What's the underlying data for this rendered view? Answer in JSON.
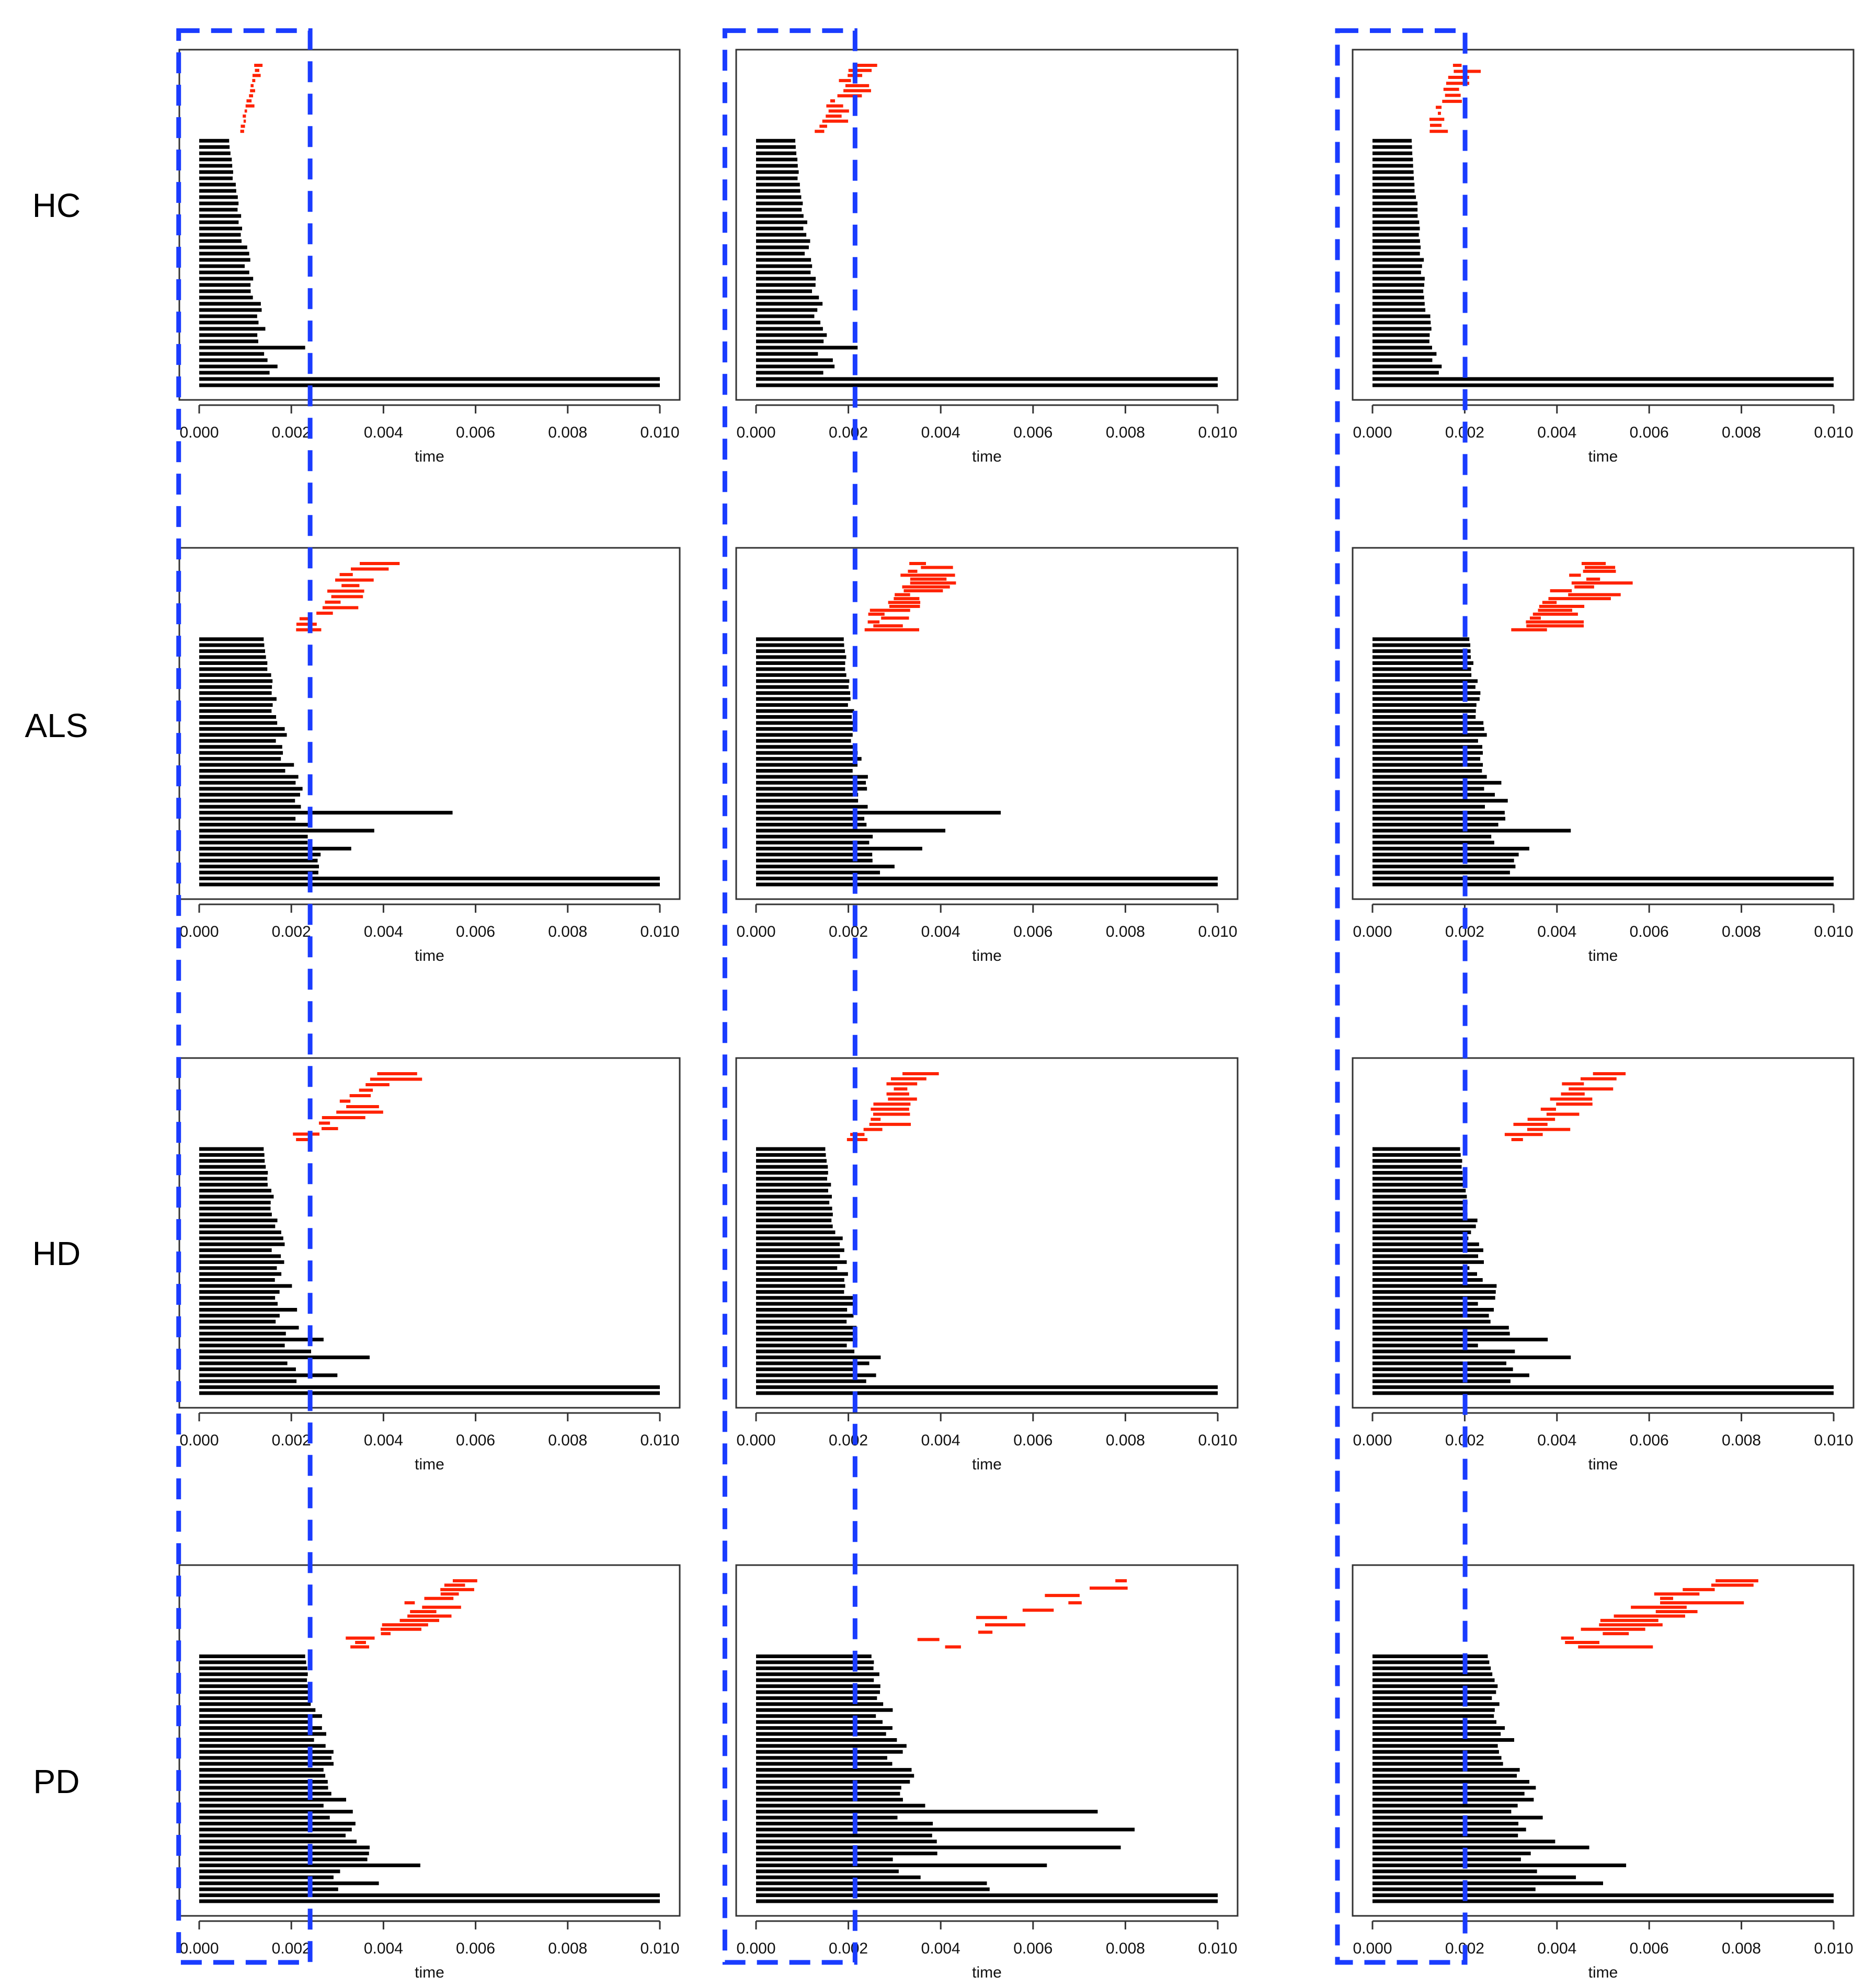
{
  "chart_data": {
    "type": "barcode",
    "description_free": true,
    "xlabel": "time",
    "xlim": [
      0,
      0.01
    ],
    "x_ticks": [
      "0.000",
      "0.002",
      "0.004",
      "0.006",
      "0.008",
      "0.010"
    ],
    "row_labels": [
      "HC",
      "ALS",
      "HD",
      "PD"
    ],
    "highlight_threshold": 0.0022,
    "colors": {
      "h0_bars": "#000000",
      "h1_bars": "#ff2200",
      "highlight_box": "#1a3cff"
    },
    "panels": [
      {
        "row": "HC",
        "col": 1,
        "h0_n": 40,
        "h0_min": 0.00065,
        "h0_max": 0.0014,
        "h0_spread": 0.0004,
        "h0_outliers": [
          0.0017,
          0.0023
        ],
        "h1_n": 14,
        "h1_start_range": [
          0.00085,
          0.00125
        ],
        "h1_len_range": [
          5e-05,
          0.0002
        ]
      },
      {
        "row": "HC",
        "col": 2,
        "h0_n": 40,
        "h0_min": 0.00085,
        "h0_max": 0.0014,
        "h0_spread": 0.0004,
        "h0_outliers": [
          0.0017,
          0.0022
        ],
        "h1_n": 14,
        "h1_start_range": [
          0.0011,
          0.0023
        ],
        "h1_len_range": [
          0.0001,
          0.0006
        ]
      },
      {
        "row": "HC",
        "col": 3,
        "h0_n": 40,
        "h0_min": 0.00085,
        "h0_max": 0.0013,
        "h0_spread": 0.0002,
        "h0_outliers": [
          0.0015
        ],
        "h1_n": 12,
        "h1_start_range": [
          0.0011,
          0.0019
        ],
        "h1_len_range": [
          5e-05,
          0.0006
        ]
      },
      {
        "row": "ALS",
        "col": 1,
        "h0_n": 42,
        "h0_min": 0.0014,
        "h0_max": 0.0022,
        "h0_spread": 0.0007,
        "h0_outliers": [
          0.0026,
          0.0033,
          0.0038,
          0.0055
        ],
        "h1_n": 13,
        "h1_start_range": [
          0.0019,
          0.0036
        ],
        "h1_len_range": [
          0.0002,
          0.0009
        ]
      },
      {
        "row": "ALS",
        "col": 2,
        "h0_n": 42,
        "h0_min": 0.0019,
        "h0_max": 0.0023,
        "h0_spread": 0.0006,
        "h0_outliers": [
          0.003,
          0.0036,
          0.0041,
          0.0053
        ],
        "h1_n": 18,
        "h1_start_range": [
          0.0021,
          0.0037
        ],
        "h1_len_range": [
          0.0002,
          0.0012
        ]
      },
      {
        "row": "ALS",
        "col": 3,
        "h0_n": 42,
        "h0_min": 0.0021,
        "h0_max": 0.0026,
        "h0_spread": 0.0009,
        "h0_outliers": [
          0.0031,
          0.0034,
          0.0043
        ],
        "h1_n": 18,
        "h1_start_range": [
          0.0028,
          0.0051
        ],
        "h1_len_range": [
          0.0002,
          0.0014
        ]
      },
      {
        "row": "HD",
        "col": 1,
        "h0_n": 42,
        "h0_min": 0.0014,
        "h0_max": 0.0018,
        "h0_spread": 0.0009,
        "h0_outliers": [
          0.003,
          0.0037,
          0.0027
        ],
        "h1_n": 13,
        "h1_start_range": [
          0.0019,
          0.004
        ],
        "h1_len_range": [
          0.0002,
          0.0012
        ]
      },
      {
        "row": "HD",
        "col": 2,
        "h0_n": 42,
        "h0_min": 0.0015,
        "h0_max": 0.0021,
        "h0_spread": 0.0006,
        "h0_outliers": [
          0.0026,
          0.0027
        ],
        "h1_n": 14,
        "h1_start_range": [
          0.0019,
          0.0033
        ],
        "h1_len_range": [
          0.0002,
          0.0009
        ]
      },
      {
        "row": "HD",
        "col": 3,
        "h0_n": 42,
        "h0_min": 0.0019,
        "h0_max": 0.0024,
        "h0_spread": 0.001,
        "h0_outliers": [
          0.0034,
          0.0043,
          0.0038
        ],
        "h1_n": 14,
        "h1_start_range": [
          0.0026,
          0.0048
        ],
        "h1_len_range": [
          0.0002,
          0.001
        ]
      },
      {
        "row": "PD",
        "col": 1,
        "h0_n": 42,
        "h0_min": 0.0023,
        "h0_max": 0.0029,
        "h0_spread": 0.0012,
        "h0_outliers": [
          0.0039,
          0.0048,
          0.0037
        ],
        "h1_n": 16,
        "h1_start_range": [
          0.0029,
          0.0057
        ],
        "h1_len_range": [
          0.0002,
          0.0011
        ]
      },
      {
        "row": "PD",
        "col": 2,
        "h0_n": 42,
        "h0_min": 0.0025,
        "h0_max": 0.003,
        "h0_spread": 0.0025,
        "h0_outliers": [
          0.005,
          0.0063,
          0.0079,
          0.0082,
          0.0074
        ],
        "h1_n": 10,
        "h1_start_range": [
          0.003,
          0.0082
        ],
        "h1_len_range": [
          0.0002,
          0.001
        ]
      },
      {
        "row": "PD",
        "col": 3,
        "h0_n": 42,
        "h0_min": 0.0025,
        "h0_max": 0.0033,
        "h0_spread": 0.0015,
        "h0_outliers": [
          0.005,
          0.0055,
          0.0047
        ],
        "h1_n": 16,
        "h1_start_range": [
          0.0035,
          0.0076
        ],
        "h1_len_range": [
          0.0002,
          0.002
        ]
      }
    ]
  }
}
